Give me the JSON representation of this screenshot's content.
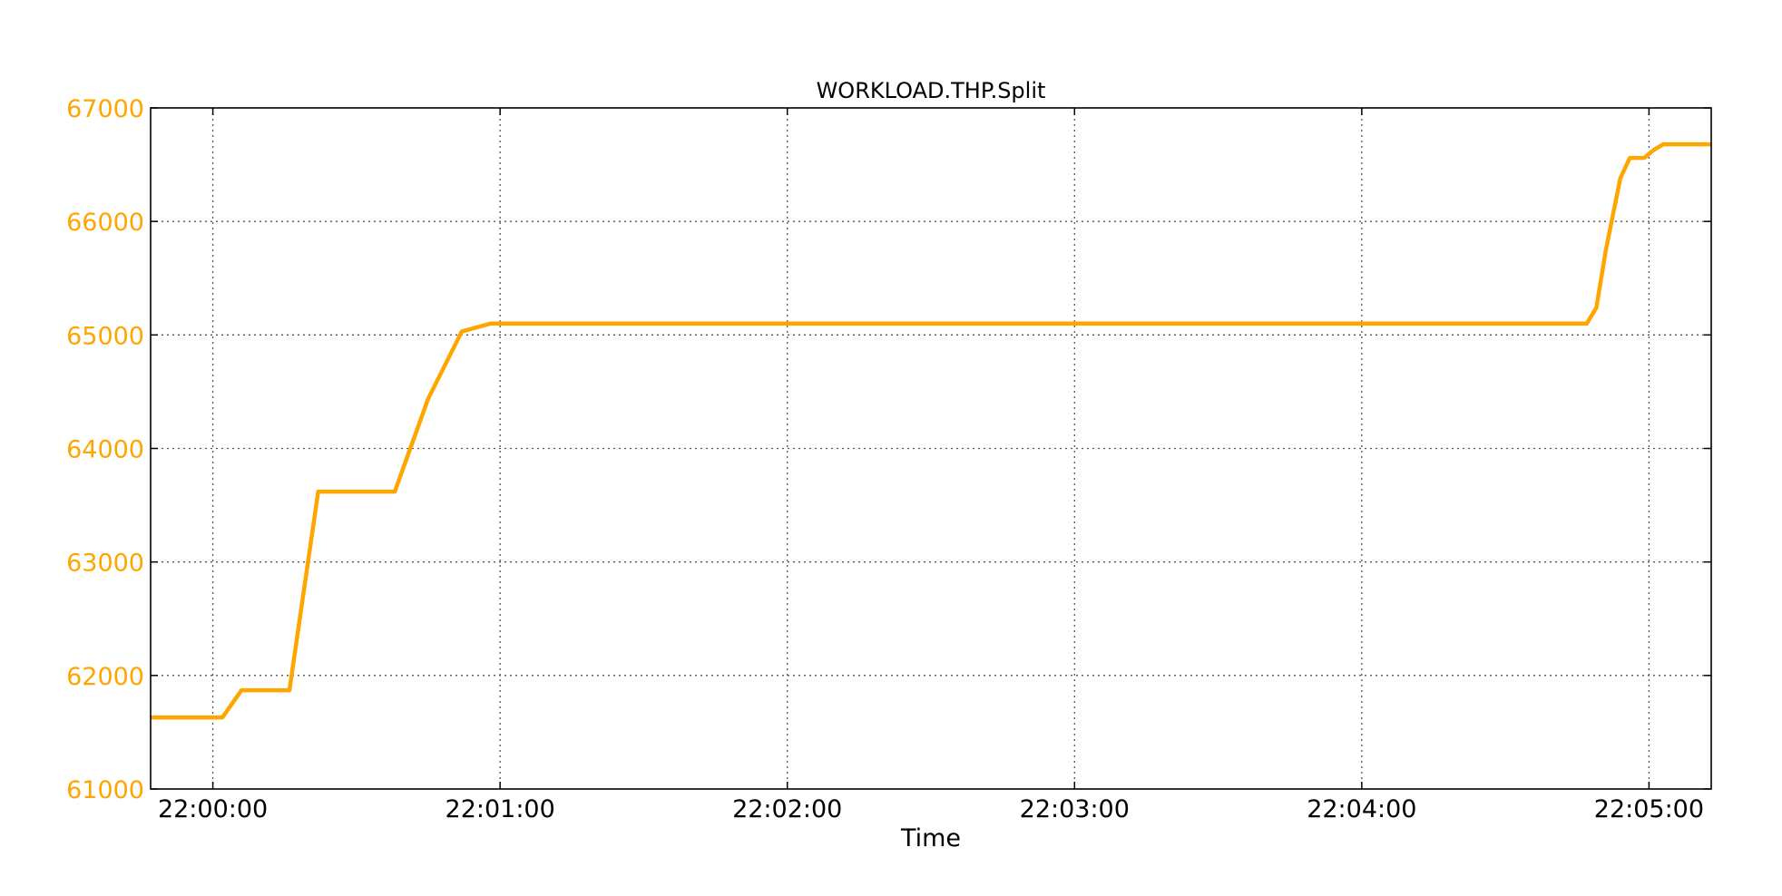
{
  "chart_data": {
    "type": "line",
    "title": "WORKLOAD.THP.Split",
    "xlabel": "Time",
    "ylabel": "",
    "x_tick_labels": [
      "22:00:00",
      "22:01:00",
      "22:02:00",
      "22:03:00",
      "22:04:00",
      "22:05:00"
    ],
    "y_tick_labels": [
      "61000",
      "62000",
      "63000",
      "64000",
      "65000",
      "66000",
      "67000"
    ],
    "ylim": [
      61000,
      67000
    ],
    "xlim": [
      "21:59:47",
      "22:05:13"
    ],
    "grid": true,
    "colors": {
      "series": "#FFA500",
      "ytick": "#FFA500",
      "axis": "#000000"
    },
    "series": [
      {
        "x": [
          "21:59:47",
          "22:00:02",
          "22:00:06",
          "22:00:16",
          "22:00:22",
          "22:00:38",
          "22:00:45",
          "22:00:52",
          "22:00:58",
          "22:01:14",
          "22:04:47",
          "22:04:49",
          "22:04:51",
          "22:04:54",
          "22:04:56",
          "22:04:59",
          "22:05:01",
          "22:05:03",
          "22:05:13"
        ],
        "y": [
          61630,
          61630,
          61870,
          61870,
          63620,
          63620,
          64440,
          65030,
          65100,
          65100,
          65100,
          65240,
          65750,
          66380,
          66560,
          66560,
          66630,
          66680,
          66680
        ]
      }
    ]
  }
}
